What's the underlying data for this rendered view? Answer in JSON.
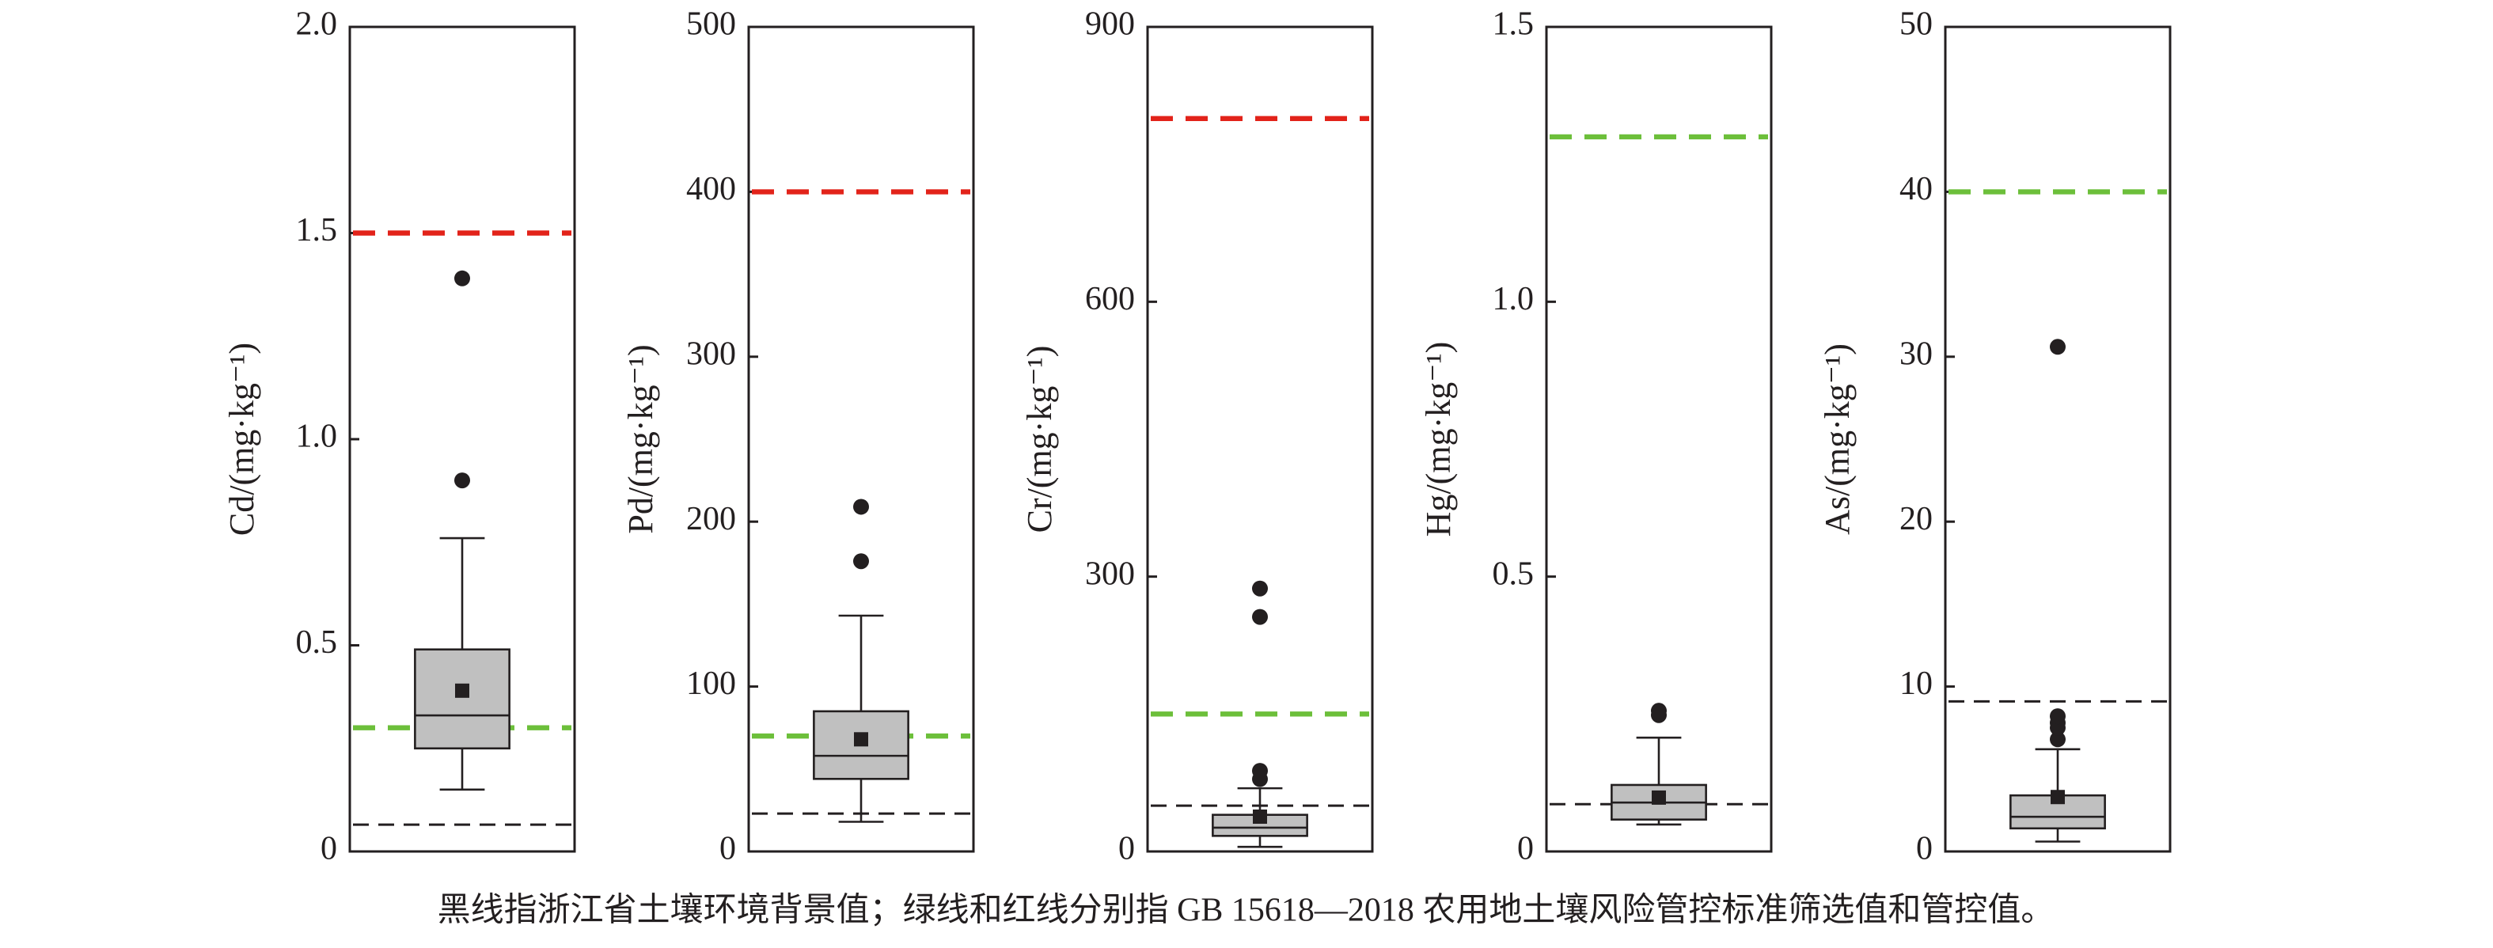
{
  "chart_data": [
    {
      "type": "box",
      "ylabel": "Cd/(mg·kg⁻¹)",
      "ylim": [
        0,
        2
      ],
      "yticks": [
        0,
        0.5,
        {
          "value": 1,
          "label": "1.0"
        },
        1.5,
        {
          "value": 2,
          "label": "2.0"
        }
      ],
      "box": {
        "whisker_low": 0.15,
        "q1": 0.25,
        "median": 0.33,
        "q3": 0.49,
        "whisker_high": 0.76,
        "mean": 0.39
      },
      "outliers": [
        0.9,
        1.39
      ],
      "box_color": "#c0c0c0",
      "lines": [
        {
          "value": 0.065,
          "color": "#231f20"
        },
        {
          "value": 0.3,
          "color": "#6cbf3a"
        },
        {
          "value": 1.5,
          "color": "#e2231a"
        }
      ]
    },
    {
      "type": "box",
      "ylabel": "Pd/(mg·kg⁻¹)",
      "ylim": [
        0,
        500
      ],
      "yticks": [
        0,
        100,
        200,
        300,
        400,
        500
      ],
      "box": {
        "whisker_low": 18,
        "q1": 44,
        "median": 58,
        "q3": 85,
        "whisker_high": 143,
        "mean": 68
      },
      "outliers": [
        176,
        209
      ],
      "box_color": "#c0c0c0",
      "lines": [
        {
          "value": 23,
          "color": "#231f20"
        },
        {
          "value": 70,
          "color": "#6cbf3a"
        },
        {
          "value": 400,
          "color": "#e2231a"
        }
      ]
    },
    {
      "type": "box",
      "ylabel": "Cr/(mg·kg⁻¹)",
      "ylim": [
        0,
        900
      ],
      "yticks": [
        0,
        300,
        600,
        900
      ],
      "box": {
        "whisker_low": 5,
        "q1": 17,
        "median": 26,
        "q3": 40,
        "whisker_high": 69,
        "mean": 38
      },
      "outliers": [
        79,
        88,
        256,
        287
      ],
      "box_color": "#c0c0c0",
      "lines": [
        {
          "value": 50,
          "color": "#231f20"
        },
        {
          "value": 150,
          "color": "#6cbf3a"
        },
        {
          "value": 800,
          "color": "#e2231a"
        }
      ]
    },
    {
      "type": "box",
      "ylabel": "Hg/(mg·kg⁻¹)",
      "ylim": [
        0,
        1.5
      ],
      "yticks": [
        0,
        0.5,
        {
          "value": 1,
          "label": "1.0"
        },
        1.5
      ],
      "box": {
        "whisker_low": 0.049,
        "q1": 0.058,
        "median": 0.089,
        "q3": 0.121,
        "whisker_high": 0.207,
        "mean": 0.098
      },
      "outliers": [
        0.248,
        0.256
      ],
      "box_color": "#c0c0c0",
      "lines": [
        {
          "value": 0.086,
          "color": "#231f20"
        },
        {
          "value": 1.3,
          "color": "#6cbf3a"
        }
      ]
    },
    {
      "type": "box",
      "ylabel": "As/(mg·kg⁻¹)",
      "ylim": [
        0,
        50
      ],
      "yticks": [
        0,
        10,
        20,
        30,
        40,
        50
      ],
      "box": {
        "whisker_low": 0.6,
        "q1": 1.4,
        "median": 2.1,
        "q3": 3.4,
        "whisker_high": 6.2,
        "mean": 3.3
      },
      "outliers": [
        6.8,
        7.5,
        7.8,
        8.2,
        30.6
      ],
      "box_color": "#c0c0c0",
      "lines": [
        {
          "value": 9.1,
          "color": "#231f20"
        },
        {
          "value": 40,
          "color": "#6cbf3a"
        }
      ]
    }
  ],
  "caption": "黑线指浙江省土壤环境背景值；绿线和红线分别指 GB 15618—2018 农用地土壤风险管控标准筛选值和管控值。"
}
